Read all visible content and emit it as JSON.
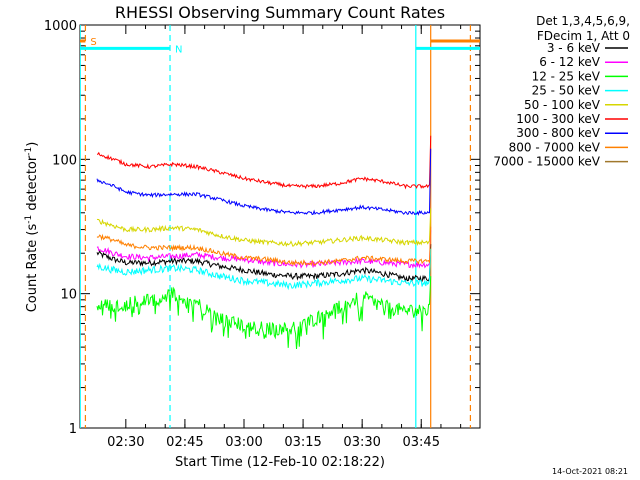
{
  "chart_data": {
    "type": "line",
    "title": "RHESSI Observing Summary Count Rates",
    "xlabel": "Start Time (12-Feb-10 02:18:22)",
    "ylabel_prefix": "Count Rate (s",
    "ylabel_sup1": "-1",
    "ylabel_mid": " detector",
    "ylabel_sup2": "-1",
    "ylabel_suffix": ")",
    "xlim": [
      2.3061,
      3.9986
    ],
    "ylim": [
      1,
      1000
    ],
    "yscale": "log",
    "x_ticks": [
      {
        "value": 2.5,
        "label": "02:30"
      },
      {
        "value": 2.75,
        "label": "02:45"
      },
      {
        "value": 3.0,
        "label": "03:00"
      },
      {
        "value": 3.25,
        "label": "03:15"
      },
      {
        "value": 3.5,
        "label": "03:30"
      },
      {
        "value": 3.75,
        "label": "03:45"
      }
    ],
    "y_ticks": [
      {
        "value": 1,
        "label": "1"
      },
      {
        "value": 10,
        "label": "10"
      },
      {
        "value": 100,
        "label": "100"
      },
      {
        "value": 1000,
        "label": "1000"
      }
    ],
    "legend_header": [
      "Det 1,3,4,5,6,9,",
      "FDecim 1, Att 0"
    ],
    "legend_placement": "right",
    "timestamp": "14-Oct-2021 08:21",
    "series": [
      {
        "name": "3 - 6 keV",
        "color": "#000000",
        "x": [
          2.38,
          2.45,
          2.5,
          2.6,
          2.7,
          2.8,
          2.9,
          3.0,
          3.1,
          3.2,
          3.3,
          3.4,
          3.5,
          3.6,
          3.68
        ],
        "values": [
          20,
          18,
          17,
          17,
          17.5,
          17.5,
          16,
          15,
          14,
          13.5,
          13.5,
          14,
          15,
          14,
          13
        ]
      },
      {
        "name": "6 - 12 keV",
        "color": "#ff00ff",
        "x": [
          2.38,
          2.45,
          2.5,
          2.6,
          2.7,
          2.8,
          2.9,
          3.0,
          3.1,
          3.2,
          3.3,
          3.4,
          3.5,
          3.6,
          3.68
        ],
        "values": [
          22,
          20,
          19,
          18.5,
          19,
          19.5,
          18.5,
          18,
          17,
          16.5,
          16.5,
          17,
          17.5,
          17,
          16.5
        ]
      },
      {
        "name": "12 - 25 keV",
        "color": "#00ff00",
        "x": [
          2.38,
          2.45,
          2.5,
          2.6,
          2.7,
          2.8,
          2.9,
          3.0,
          3.1,
          3.2,
          3.3,
          3.4,
          3.5,
          3.6,
          3.68
        ],
        "values": [
          8,
          8.5,
          8.5,
          9,
          10,
          8.5,
          6.5,
          5.8,
          5.5,
          5.5,
          6.5,
          8,
          9.5,
          8,
          7.5
        ]
      },
      {
        "name": "25 - 50 keV",
        "color": "#00ffff",
        "x": [
          2.38,
          2.45,
          2.5,
          2.6,
          2.7,
          2.8,
          2.9,
          3.0,
          3.1,
          3.2,
          3.3,
          3.4,
          3.5,
          3.6,
          3.68
        ],
        "values": [
          16,
          15,
          14.5,
          15,
          15.5,
          15,
          13.5,
          12.5,
          12,
          11.5,
          12,
          12.5,
          13,
          12.5,
          12
        ]
      },
      {
        "name": "50 - 100 keV",
        "color": "#d6d600",
        "x": [
          2.38,
          2.45,
          2.5,
          2.6,
          2.7,
          2.8,
          2.9,
          3.0,
          3.1,
          3.2,
          3.3,
          3.4,
          3.5,
          3.6,
          3.68
        ],
        "values": [
          35,
          32,
          30,
          30,
          31,
          30,
          27,
          25,
          24,
          23.5,
          24,
          25,
          26,
          25,
          24
        ]
      },
      {
        "name": "100 - 300 keV",
        "color": "#ff0000",
        "x": [
          2.38,
          2.45,
          2.5,
          2.6,
          2.7,
          2.8,
          2.9,
          3.0,
          3.1,
          3.2,
          3.3,
          3.4,
          3.5,
          3.6,
          3.68
        ],
        "values": [
          110,
          100,
          92,
          88,
          92,
          88,
          80,
          72,
          67,
          63,
          63,
          66,
          72,
          68,
          63
        ]
      },
      {
        "name": "300 - 800 keV",
        "color": "#0000ff",
        "x": [
          2.38,
          2.45,
          2.5,
          2.6,
          2.7,
          2.8,
          2.9,
          3.0,
          3.1,
          3.2,
          3.3,
          3.4,
          3.5,
          3.6,
          3.68
        ],
        "values": [
          70,
          63,
          57,
          54,
          55,
          55,
          50,
          45,
          42,
          40,
          40,
          42,
          44,
          42,
          40
        ]
      },
      {
        "name": "800 - 7000 keV",
        "color": "#ff8000",
        "x": [
          2.38,
          2.45,
          2.5,
          2.6,
          2.7,
          2.8,
          2.9,
          3.0,
          3.1,
          3.2,
          3.3,
          3.4,
          3.5,
          3.6,
          3.68
        ],
        "values": [
          27,
          25,
          23,
          22,
          22,
          22,
          20,
          18.5,
          18,
          17,
          17,
          17.5,
          18.5,
          18,
          17.5
        ]
      },
      {
        "name": "7000 - 15000 keV",
        "color": "#a0782c",
        "x": [],
        "values": []
      }
    ],
    "markers": [
      {
        "label": "S",
        "color": "#ff8000",
        "x": 2.329,
        "bar_from": 2.3061,
        "bar_to": 2.329,
        "bar_y": 760
      },
      {
        "label": "N",
        "color": "#00ffff",
        "x": 2.687,
        "bar_from": 2.3061,
        "bar_to": 2.687,
        "bar_y": 670
      }
    ],
    "end_bars": [
      {
        "color": "#ff8000",
        "from": 3.79,
        "to": 3.9986,
        "y": 760
      },
      {
        "color": "#00ffff",
        "from": 3.727,
        "to": 3.9986,
        "y": 670
      }
    ],
    "vlines_solid": [
      {
        "x": 2.307,
        "color": "#00ffff"
      },
      {
        "x": 3.727,
        "color": "#00ffff"
      },
      {
        "x": 3.79,
        "color": "#ff8000"
      }
    ],
    "vlines_dashed": [
      {
        "x": 2.329,
        "color": "#ff8000"
      },
      {
        "x": 2.687,
        "color": "#00ffff"
      },
      {
        "x": 3.958,
        "color": "#ff8000"
      }
    ]
  }
}
